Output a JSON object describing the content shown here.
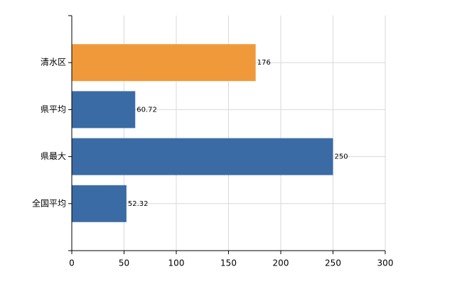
{
  "chart_data": {
    "type": "barh",
    "categories": [
      "清水区",
      "県平均",
      "県最大",
      "全国平均"
    ],
    "values": [
      176,
      60.72,
      250,
      52.32
    ],
    "colors": [
      "#f0993b",
      "#3b6ba5",
      "#3b6ba5",
      "#3b6ba5"
    ],
    "xlim": [
      0,
      300
    ],
    "xticks": [
      0,
      50,
      100,
      150,
      200,
      250,
      300
    ],
    "grid": true
  }
}
